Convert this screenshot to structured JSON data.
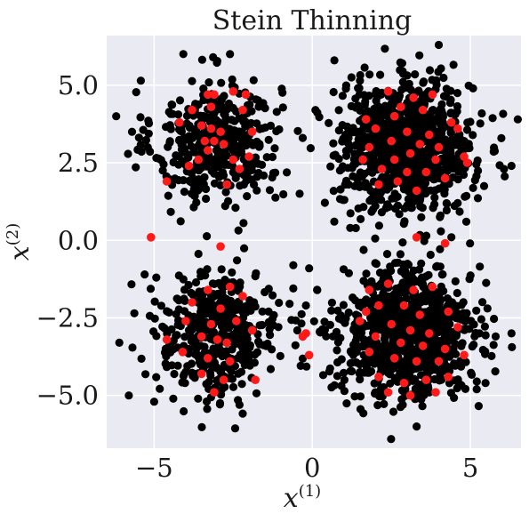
{
  "chart_data": {
    "type": "scatter",
    "title": "Stein Thinning",
    "xlabel": "x",
    "xlabel_sup": "(1)",
    "ylabel": "x",
    "ylabel_sup": "(2)",
    "xlim": [
      -6.5,
      6.6
    ],
    "ylim": [
      -6.7,
      6.6
    ],
    "xticks": [
      -5,
      0,
      5
    ],
    "xtick_labels": [
      "−5",
      "0",
      "5"
    ],
    "yticks": [
      5.0,
      2.5,
      0.0,
      -2.5,
      -5.0
    ],
    "ytick_labels": [
      "5.0",
      "2.5",
      "0.0",
      "−2.5",
      "−5.0"
    ],
    "grid": true,
    "background": "#eaeaf2",
    "grid_color": "#ffffff",
    "series": [
      {
        "color": "#000000",
        "role": "samples",
        "clusters": [
          {
            "center": [
              -3.0,
              3.2
            ],
            "std": 1.0,
            "count": 420
          },
          {
            "center": [
              3.0,
              3.0
            ],
            "std": 1.05,
            "count": 900
          },
          {
            "center": [
              -3.0,
              -3.0
            ],
            "std": 1.0,
            "count": 420
          },
          {
            "center": [
              3.0,
              -3.0
            ],
            "std": 1.05,
            "count": 950
          }
        ],
        "outliers": [
          [
            -6.2,
            4.0
          ],
          [
            -5.7,
            3.5
          ],
          [
            -6.1,
            -3.3
          ],
          [
            -5.8,
            -5.0
          ],
          [
            -5.0,
            -5.2
          ],
          [
            -5.2,
            3.0
          ],
          [
            -2.6,
            6.0
          ],
          [
            -0.3,
            3.3
          ],
          [
            -0.4,
            1.5
          ],
          [
            -0.6,
            -0.8
          ],
          [
            -0.1,
            -0.9
          ],
          [
            -0.2,
            -2.1
          ],
          [
            0.7,
            5.8
          ],
          [
            0.1,
            4.2
          ],
          [
            4.0,
            6.3
          ],
          [
            6.5,
            3.9
          ],
          [
            6.3,
            2.4
          ],
          [
            6.3,
            -3.0
          ],
          [
            5.8,
            -3.1
          ],
          [
            3.3,
            -6.0
          ],
          [
            -5.3,
            -1.1
          ],
          [
            -2.3,
            -5.3
          ],
          [
            5.2,
            -4.8
          ],
          [
            1.2,
            0.4
          ],
          [
            4.4,
            0.1
          ]
        ]
      },
      {
        "color": "#ff1a1a",
        "role": "selected",
        "points": [
          [
            -3.3,
            4.7
          ],
          [
            -3.1,
            4.7
          ],
          [
            -2.5,
            4.8
          ],
          [
            -2.1,
            4.7
          ],
          [
            -3.8,
            4.2
          ],
          [
            -3.2,
            4.3
          ],
          [
            -2.2,
            4.2
          ],
          [
            -3.5,
            3.7
          ],
          [
            -4.2,
            3.8
          ],
          [
            -3.2,
            3.6
          ],
          [
            -2.9,
            3.5
          ],
          [
            -1.9,
            3.5
          ],
          [
            -3.4,
            3.2
          ],
          [
            -3.1,
            3.2
          ],
          [
            -2.8,
            3.1
          ],
          [
            -3.3,
            2.9
          ],
          [
            -3.6,
            2.6
          ],
          [
            -2.5,
            2.6
          ],
          [
            -2.0,
            2.7
          ],
          [
            -3.9,
            2.4
          ],
          [
            -2.3,
            2.3
          ],
          [
            -4.6,
            1.9
          ],
          [
            -2.7,
            1.8
          ],
          [
            2.4,
            4.8
          ],
          [
            3.2,
            4.6
          ],
          [
            3.8,
            4.7
          ],
          [
            2.8,
            4.3
          ],
          [
            3.5,
            4.2
          ],
          [
            2.6,
            4.0
          ],
          [
            1.7,
            3.9
          ],
          [
            4.4,
            3.8
          ],
          [
            2.0,
            3.6
          ],
          [
            3.0,
            3.5
          ],
          [
            3.7,
            3.4
          ],
          [
            4.6,
            3.6
          ],
          [
            2.5,
            3.2
          ],
          [
            3.4,
            3.1
          ],
          [
            4.0,
            3.0
          ],
          [
            1.8,
            3.0
          ],
          [
            3.1,
            2.8
          ],
          [
            2.6,
            2.6
          ],
          [
            3.9,
            2.6
          ],
          [
            4.8,
            2.7
          ],
          [
            2.2,
            2.3
          ],
          [
            3.0,
            2.2
          ],
          [
            3.6,
            2.2
          ],
          [
            2.7,
            1.9
          ],
          [
            4.2,
            2.0
          ],
          [
            3.3,
            1.6
          ],
          [
            2.1,
            1.8
          ],
          [
            4.9,
            2.5
          ],
          [
            1.6,
            2.6
          ],
          [
            3.3,
            0.1
          ],
          [
            4.2,
            -0.1
          ],
          [
            -5.1,
            0.1
          ],
          [
            -2.9,
            -0.2
          ],
          [
            -3.3,
            -1.6
          ],
          [
            -2.6,
            -1.5
          ],
          [
            -3.8,
            -2.0
          ],
          [
            -2.9,
            -2.2
          ],
          [
            -2.2,
            -1.8
          ],
          [
            -4.0,
            -2.6
          ],
          [
            -3.2,
            -2.7
          ],
          [
            -2.4,
            -2.6
          ],
          [
            -1.9,
            -2.9
          ],
          [
            -3.5,
            -3.1
          ],
          [
            -3.0,
            -3.2
          ],
          [
            -2.7,
            -3.3
          ],
          [
            -4.6,
            -3.2
          ],
          [
            -4.1,
            -3.6
          ],
          [
            -3.3,
            -3.8
          ],
          [
            -2.6,
            -3.9
          ],
          [
            -3.5,
            -4.3
          ],
          [
            -2.8,
            -4.5
          ],
          [
            -3.1,
            -4.9
          ],
          [
            -1.8,
            -4.5
          ],
          [
            -0.2,
            -3.0
          ],
          [
            -0.3,
            -3.1
          ],
          [
            -0.1,
            -3.7
          ],
          [
            1.8,
            -1.6
          ],
          [
            2.4,
            -1.4
          ],
          [
            3.2,
            -1.6
          ],
          [
            3.8,
            -1.5
          ],
          [
            1.7,
            -2.3
          ],
          [
            2.1,
            -2.1
          ],
          [
            2.9,
            -2.1
          ],
          [
            3.4,
            -2.4
          ],
          [
            4.3,
            -2.3
          ],
          [
            1.5,
            -2.6
          ],
          [
            2.5,
            -2.7
          ],
          [
            3.1,
            -2.9
          ],
          [
            3.7,
            -3.0
          ],
          [
            4.6,
            -2.8
          ],
          [
            2.0,
            -3.1
          ],
          [
            2.8,
            -3.3
          ],
          [
            3.5,
            -3.4
          ],
          [
            4.2,
            -3.5
          ],
          [
            1.8,
            -3.6
          ],
          [
            2.6,
            -3.8
          ],
          [
            3.3,
            -3.9
          ],
          [
            4.0,
            -3.9
          ],
          [
            4.8,
            -3.7
          ],
          [
            2.1,
            -4.4
          ],
          [
            2.9,
            -4.6
          ],
          [
            3.6,
            -4.5
          ],
          [
            4.3,
            -4.4
          ],
          [
            2.4,
            -4.9
          ],
          [
            3.1,
            -5.0
          ],
          [
            3.9,
            -4.9
          ]
        ]
      }
    ]
  }
}
